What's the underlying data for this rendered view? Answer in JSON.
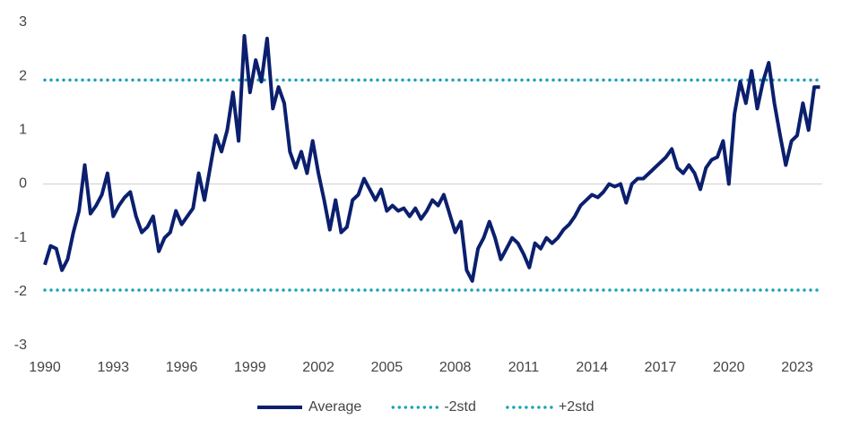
{
  "chart_data": {
    "type": "line",
    "xlim": [
      1990,
      2024.1
    ],
    "xticks": [
      1990,
      1993,
      1996,
      1999,
      2002,
      2005,
      2008,
      2011,
      2014,
      2017,
      2020,
      2023
    ],
    "ylim": [
      -3,
      3
    ],
    "yticks": [
      -3,
      -2,
      -1,
      0,
      1,
      2,
      3
    ],
    "zero_line": true,
    "legend": "bottom",
    "series": [
      {
        "name": "Average",
        "color": "#0b1f6e",
        "style": "solid",
        "x": [
          1990,
          1990.25,
          1990.5,
          1990.75,
          1991,
          1991.25,
          1991.5,
          1991.75,
          1992,
          1992.25,
          1992.5,
          1992.75,
          1993,
          1993.25,
          1993.5,
          1993.75,
          1994,
          1994.25,
          1994.5,
          1994.75,
          1995,
          1995.25,
          1995.5,
          1995.75,
          1996,
          1996.25,
          1996.5,
          1996.75,
          1997,
          1997.25,
          1997.5,
          1997.75,
          1998,
          1998.25,
          1998.5,
          1998.75,
          1999,
          1999.25,
          1999.5,
          1999.75,
          2000,
          2000.25,
          2000.5,
          2000.75,
          2001,
          2001.25,
          2001.5,
          2001.75,
          2002,
          2002.25,
          2002.5,
          2002.75,
          2003,
          2003.25,
          2003.5,
          2003.75,
          2004,
          2004.25,
          2004.5,
          2004.75,
          2005,
          2005.25,
          2005.5,
          2005.75,
          2006,
          2006.25,
          2006.5,
          2006.75,
          2007,
          2007.25,
          2007.5,
          2007.75,
          2008,
          2008.25,
          2008.5,
          2008.75,
          2009,
          2009.25,
          2009.5,
          2009.75,
          2010,
          2010.25,
          2010.5,
          2010.75,
          2011,
          2011.25,
          2011.5,
          2011.75,
          2012,
          2012.25,
          2012.5,
          2012.75,
          2013,
          2013.25,
          2013.5,
          2013.75,
          2014,
          2014.25,
          2014.5,
          2014.75,
          2015,
          2015.25,
          2015.5,
          2015.75,
          2016,
          2016.25,
          2016.5,
          2016.75,
          2017,
          2017.25,
          2017.5,
          2017.75,
          2018,
          2018.25,
          2018.5,
          2018.75,
          2019,
          2019.25,
          2019.5,
          2019.75,
          2020,
          2020.25,
          2020.5,
          2020.75,
          2021,
          2021.25,
          2021.5,
          2021.75,
          2022,
          2022.25,
          2022.5,
          2022.75,
          2023,
          2023.25,
          2023.5,
          2023.75,
          2024
        ],
        "values": [
          -1.5,
          -1.15,
          -1.2,
          -1.6,
          -1.4,
          -0.9,
          -0.5,
          0.35,
          -0.55,
          -0.4,
          -0.2,
          0.2,
          -0.6,
          -0.4,
          -0.25,
          -0.15,
          -0.6,
          -0.9,
          -0.8,
          -0.6,
          -1.25,
          -1.0,
          -0.9,
          -0.5,
          -0.75,
          -0.6,
          -0.45,
          0.2,
          -0.3,
          0.3,
          0.9,
          0.6,
          1.0,
          1.7,
          0.8,
          2.75,
          1.7,
          2.3,
          1.9,
          2.7,
          1.4,
          1.8,
          1.5,
          0.6,
          0.3,
          0.6,
          0.2,
          0.8,
          0.2,
          -0.3,
          -0.85,
          -0.3,
          -0.9,
          -0.8,
          -0.3,
          -0.2,
          0.1,
          -0.1,
          -0.3,
          -0.1,
          -0.5,
          -0.4,
          -0.5,
          -0.45,
          -0.6,
          -0.45,
          -0.65,
          -0.5,
          -0.3,
          -0.4,
          -0.2,
          -0.55,
          -0.9,
          -0.7,
          -1.6,
          -1.8,
          -1.2,
          -1.0,
          -0.7,
          -1.0,
          -1.4,
          -1.2,
          -1.0,
          -1.1,
          -1.3,
          -1.55,
          -1.1,
          -1.2,
          -1.0,
          -1.1,
          -1.0,
          -0.85,
          -0.75,
          -0.6,
          -0.4,
          -0.3,
          -0.2,
          -0.25,
          -0.15,
          0.0,
          -0.05,
          0.0,
          -0.35,
          0.0,
          0.1,
          0.1,
          0.2,
          0.3,
          0.4,
          0.5,
          0.65,
          0.3,
          0.2,
          0.35,
          0.2,
          -0.1,
          0.3,
          0.45,
          0.5,
          0.8,
          0.0,
          1.3,
          1.9,
          1.5,
          2.1,
          1.4,
          1.9,
          2.25,
          1.5,
          0.9,
          0.35,
          0.8,
          0.9,
          1.5,
          1.0,
          1.8,
          1.8
        ]
      },
      {
        "name": "-2std",
        "color": "#1ba3b4",
        "style": "dotted",
        "x": [
          1990,
          2024.1
        ],
        "values": [
          -1.97,
          -1.97
        ]
      },
      {
        "name": "+2std",
        "color": "#1ba3b4",
        "style": "dotted",
        "x": [
          1990,
          2024.1
        ],
        "values": [
          1.93,
          1.93
        ]
      }
    ]
  }
}
